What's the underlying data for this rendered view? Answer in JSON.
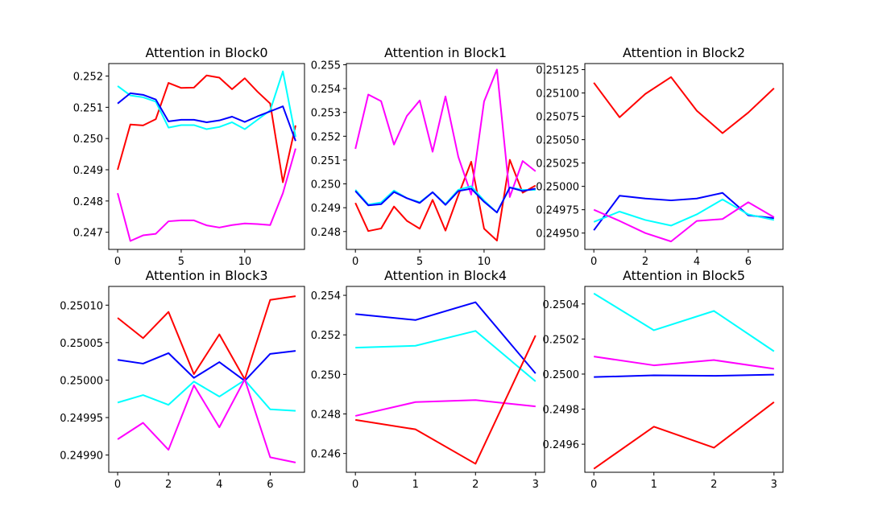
{
  "colors": {
    "red": "#ff0000",
    "cyan": "#00ffff",
    "blue": "#0000ff",
    "magenta": "#ff00ff"
  },
  "chart_data": [
    {
      "type": "line",
      "title": "Attention in Block0",
      "x": [
        0,
        1,
        2,
        3,
        4,
        5,
        6,
        7,
        8,
        9,
        10,
        11,
        12,
        13,
        14
      ],
      "xlim": [
        -0.7,
        14.7
      ],
      "ylim": [
        0.24645,
        0.2524
      ],
      "xticks": [
        0,
        5,
        10
      ],
      "xtick_labels": [
        "0",
        "5",
        "10"
      ],
      "yticks": [
        0.247,
        0.248,
        0.249,
        0.25,
        0.251,
        0.252
      ],
      "ytick_labels": [
        "0.247",
        "0.248",
        "0.249",
        "0.250",
        "0.251",
        "0.252"
      ],
      "series": [
        {
          "color": "red",
          "values": [
            0.249,
            0.25045,
            0.25042,
            0.25062,
            0.25178,
            0.25162,
            0.25163,
            0.25202,
            0.25195,
            0.25158,
            0.25193,
            0.2515,
            0.25112,
            0.2486,
            0.25042
          ]
        },
        {
          "color": "cyan",
          "values": [
            0.25168,
            0.25138,
            0.25132,
            0.25118,
            0.25035,
            0.25043,
            0.25043,
            0.2503,
            0.25037,
            0.25052,
            0.2503,
            0.2506,
            0.2509,
            0.25215,
            0.25005
          ]
        },
        {
          "color": "blue",
          "values": [
            0.25112,
            0.25145,
            0.2514,
            0.25125,
            0.25055,
            0.2506,
            0.2506,
            0.25052,
            0.25058,
            0.2507,
            0.25053,
            0.25071,
            0.25087,
            0.25103,
            0.24992
          ]
        },
        {
          "color": "magenta",
          "values": [
            0.24825,
            0.24672,
            0.2469,
            0.24695,
            0.24735,
            0.24738,
            0.24738,
            0.24722,
            0.24715,
            0.24723,
            0.24728,
            0.24726,
            0.24723,
            0.24825,
            0.24968
          ]
        }
      ]
    },
    {
      "type": "line",
      "title": "Attention in Block1",
      "x": [
        0,
        1,
        2,
        3,
        4,
        5,
        6,
        7,
        8,
        9,
        10,
        11,
        12,
        13,
        14
      ],
      "xlim": [
        -0.7,
        14.7
      ],
      "ylim": [
        0.24725,
        0.25505
      ],
      "xticks": [
        0,
        5,
        10
      ],
      "xtick_labels": [
        "0",
        "5",
        "10"
      ],
      "yticks": [
        0.248,
        0.249,
        0.25,
        0.251,
        0.252,
        0.253,
        0.254,
        0.255
      ],
      "ytick_labels": [
        "0.248",
        "0.249",
        "0.250",
        "0.251",
        "0.252",
        "0.253",
        "0.254",
        "0.255"
      ],
      "series": [
        {
          "color": "red",
          "values": [
            0.2492,
            0.24802,
            0.24813,
            0.24905,
            0.24845,
            0.24812,
            0.24933,
            0.24804,
            0.24953,
            0.25093,
            0.24812,
            0.24762,
            0.25101,
            0.24963,
            0.24993
          ]
        },
        {
          "color": "magenta",
          "values": [
            0.25147,
            0.25375,
            0.25347,
            0.25165,
            0.25285,
            0.2535,
            0.25135,
            0.25367,
            0.25113,
            0.24955,
            0.25346,
            0.2548,
            0.24945,
            0.25096,
            0.25053
          ]
        },
        {
          "color": "cyan",
          "values": [
            0.24975,
            0.24913,
            0.24922,
            0.24972,
            0.2494,
            0.24923,
            0.24965,
            0.24915,
            0.24975,
            0.2499,
            0.2493,
            0.2488,
            0.24985,
            0.24975,
            0.24975
          ]
        },
        {
          "color": "blue",
          "values": [
            0.2497,
            0.2491,
            0.24915,
            0.24966,
            0.2494,
            0.2492,
            0.24965,
            0.24912,
            0.2497,
            0.2498,
            0.24925,
            0.2488,
            0.24985,
            0.2497,
            0.2498
          ]
        }
      ]
    },
    {
      "type": "line",
      "title": "Attention in Block2",
      "x": [
        0,
        1,
        2,
        3,
        4,
        5,
        6,
        7
      ],
      "xlim": [
        -0.35,
        7.35
      ],
      "ylim": [
        0.249325,
        0.251315
      ],
      "xticks": [
        0,
        2,
        4,
        6
      ],
      "xtick_labels": [
        "0",
        "2",
        "4",
        "6"
      ],
      "yticks": [
        0.2495,
        0.24975,
        0.25,
        0.25025,
        0.2505,
        0.25075,
        0.251,
        0.25125
      ],
      "ytick_labels": [
        "0.24950",
        "0.24975",
        "0.25000",
        "0.25025",
        "0.25050",
        "0.25075",
        "0.25100",
        "0.25125"
      ],
      "series": [
        {
          "color": "red",
          "values": [
            0.25111,
            0.25074,
            0.25099,
            0.25117,
            0.25081,
            0.25057,
            0.25079,
            0.25105
          ]
        },
        {
          "color": "blue",
          "values": [
            0.24953,
            0.2499,
            0.24987,
            0.24985,
            0.24987,
            0.24993,
            0.24969,
            0.24966
          ]
        },
        {
          "color": "cyan",
          "values": [
            0.24962,
            0.24973,
            0.24964,
            0.24958,
            0.2497,
            0.24986,
            0.2497,
            0.24964
          ]
        },
        {
          "color": "magenta",
          "values": [
            0.24975,
            0.24963,
            0.2495,
            0.24941,
            0.24963,
            0.24965,
            0.24983,
            0.24967
          ]
        }
      ]
    },
    {
      "type": "line",
      "title": "Attention in Block3",
      "x": [
        0,
        1,
        2,
        3,
        4,
        5,
        6,
        7
      ],
      "xlim": [
        -0.35,
        7.35
      ],
      "ylim": [
        0.249877,
        0.250125
      ],
      "xticks": [
        0,
        2,
        4,
        6
      ],
      "xtick_labels": [
        "0",
        "2",
        "4",
        "6"
      ],
      "yticks": [
        0.2499,
        0.24995,
        0.25,
        0.25005,
        0.2501
      ],
      "ytick_labels": [
        "0.24990",
        "0.24995",
        "0.25000",
        "0.25005",
        "0.25010"
      ],
      "series": [
        {
          "color": "red",
          "values": [
            0.250083,
            0.250056,
            0.250091,
            0.250008,
            0.250061,
            0.250001,
            0.250107,
            0.250112
          ]
        },
        {
          "color": "blue",
          "values": [
            0.250027,
            0.250022,
            0.250036,
            0.250003,
            0.250024,
            0.249999,
            0.250035,
            0.250039
          ]
        },
        {
          "color": "cyan",
          "values": [
            0.24997,
            0.24998,
            0.249967,
            0.249998,
            0.249978,
            0.25,
            0.249961,
            0.249959
          ]
        },
        {
          "color": "magenta",
          "values": [
            0.249921,
            0.249943,
            0.249907,
            0.249993,
            0.249937,
            0.250001,
            0.249897,
            0.24989
          ]
        }
      ]
    },
    {
      "type": "line",
      "title": "Attention in Block4",
      "x": [
        0,
        1,
        2,
        3
      ],
      "xlim": [
        -0.15,
        3.15
      ],
      "ylim": [
        0.24505,
        0.25445
      ],
      "xticks": [
        0,
        1,
        2,
        3
      ],
      "xtick_labels": [
        "0",
        "1",
        "2",
        "3"
      ],
      "yticks": [
        0.246,
        0.248,
        0.25,
        0.252,
        0.254
      ],
      "ytick_labels": [
        "0.246",
        "0.248",
        "0.250",
        "0.252",
        "0.254"
      ],
      "series": [
        {
          "color": "blue",
          "values": [
            0.25305,
            0.25275,
            0.25365,
            0.25005
          ]
        },
        {
          "color": "cyan",
          "values": [
            0.25135,
            0.25145,
            0.2522,
            0.24965
          ]
        },
        {
          "color": "magenta",
          "values": [
            0.2479,
            0.2486,
            0.2487,
            0.24838
          ]
        },
        {
          "color": "red",
          "values": [
            0.2477,
            0.24722,
            0.24548,
            0.25197
          ]
        }
      ]
    },
    {
      "type": "line",
      "title": "Attention in Block5",
      "x": [
        0,
        1,
        2,
        3
      ],
      "xlim": [
        -0.15,
        3.15
      ],
      "ylim": [
        0.24944,
        0.2505
      ],
      "xticks": [
        0,
        1,
        2,
        3
      ],
      "xtick_labels": [
        "0",
        "1",
        "2",
        "3"
      ],
      "yticks": [
        0.2496,
        0.2498,
        0.25,
        0.2502,
        0.2504
      ],
      "ytick_labels": [
        "0.2496",
        "0.2498",
        "0.2500",
        "0.2502",
        "0.2504"
      ],
      "series": [
        {
          "color": "cyan",
          "values": [
            0.25046,
            0.25025,
            0.25036,
            0.25013
          ]
        },
        {
          "color": "magenta",
          "values": [
            0.2501,
            0.25005,
            0.25008,
            0.25003
          ]
        },
        {
          "color": "blue",
          "values": [
            0.249983,
            0.249993,
            0.24999,
            0.249997
          ]
        },
        {
          "color": "red",
          "values": [
            0.24946,
            0.2497,
            0.24958,
            0.24984
          ]
        }
      ]
    }
  ]
}
